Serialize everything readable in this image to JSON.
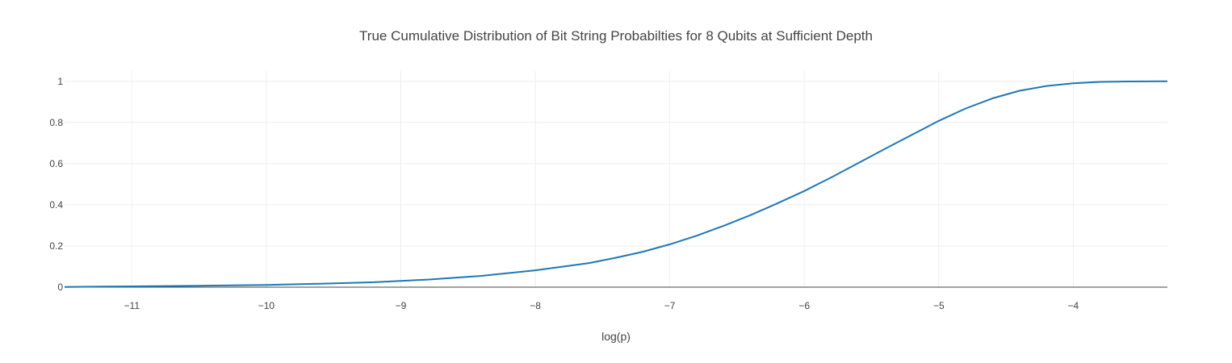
{
  "chart_data": {
    "type": "line",
    "title": "True Cumulative Distribution of Bit String Probabilties for 8 Qubits at Sufficient Depth",
    "xlabel": "log(p)",
    "ylabel": "",
    "xlim": [
      -11.5,
      -3.3
    ],
    "ylim": [
      0,
      1.05
    ],
    "x_ticks": [
      -11,
      -10,
      -9,
      -8,
      -7,
      -6,
      -5,
      -4
    ],
    "x_tick_labels": [
      "−11",
      "−10",
      "−9",
      "−8",
      "−7",
      "−6",
      "−5",
      "−4"
    ],
    "y_ticks": [
      0,
      0.2,
      0.4,
      0.6,
      0.8,
      1
    ],
    "y_tick_labels": [
      "0",
      "0.2",
      "0.4",
      "0.6",
      "0.8",
      "1"
    ],
    "grid": true,
    "legend": "none",
    "series": [
      {
        "color": "#1f77b4",
        "x": [
          -11.5,
          -11.0,
          -10.5,
          -10.0,
          -9.6,
          -9.2,
          -8.8,
          -8.4,
          -8.0,
          -7.6,
          -7.4,
          -7.2,
          -7.0,
          -6.8,
          -6.6,
          -6.4,
          -6.2,
          -6.0,
          -5.8,
          -5.6,
          -5.4,
          -5.2,
          -5.0,
          -4.8,
          -4.6,
          -4.4,
          -4.2,
          -4.0,
          -3.8,
          -3.6,
          -3.3
        ],
        "y": [
          0.001,
          0.004,
          0.007,
          0.011,
          0.017,
          0.024,
          0.037,
          0.055,
          0.082,
          0.117,
          0.143,
          0.172,
          0.208,
          0.25,
          0.298,
          0.35,
          0.407,
          0.467,
          0.533,
          0.602,
          0.672,
          0.74,
          0.808,
          0.868,
          0.917,
          0.954,
          0.977,
          0.99,
          0.997,
          0.999,
          1.0
        ]
      }
    ]
  }
}
